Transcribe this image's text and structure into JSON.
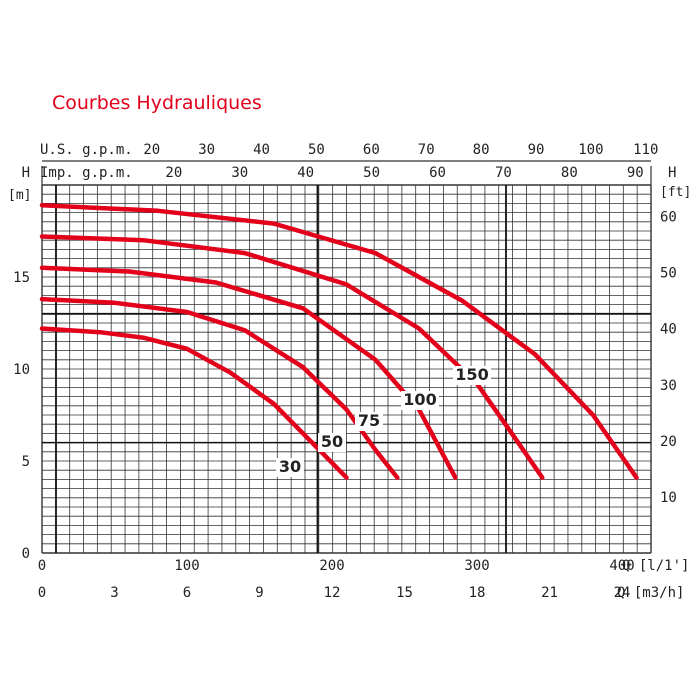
{
  "chart_data": {
    "type": "line",
    "title": "Courbes Hydrauliques",
    "grid": true,
    "legend": "none",
    "curve_color": "#e3001b",
    "axes": {
      "x_bottom_lpm": {
        "label": "Q [l/1']",
        "range": [
          0,
          420
        ],
        "ticks": [
          "0",
          "100",
          "200",
          "300",
          "400"
        ]
      },
      "x_bottom_m3h": {
        "label": "Q [m3/h]",
        "range": [
          0,
          25.2
        ],
        "ticks": [
          "0",
          "3",
          "6",
          "9",
          "12",
          "15",
          "18",
          "21",
          "24"
        ]
      },
      "x_top_usgpm": {
        "label": "U.S. g.p.m.",
        "ticks": [
          "20",
          "30",
          "40",
          "50",
          "60",
          "70",
          "80",
          "90",
          "100",
          "110"
        ]
      },
      "x_top_impgpm": {
        "label": "Imp. g.p.m.",
        "ticks": [
          "20",
          "30",
          "40",
          "50",
          "60",
          "70",
          "80",
          "90"
        ]
      },
      "y_left_m": {
        "axis_letter": "H",
        "label": "[m]",
        "range": [
          0,
          20
        ],
        "ticks": [
          "0",
          "5",
          "10",
          "15"
        ]
      },
      "y_right_ft": {
        "axis_letter": "H",
        "label": "[ft]",
        "ticks": [
          "10",
          "20",
          "30",
          "40",
          "50",
          "60"
        ]
      }
    },
    "series": [
      {
        "name": "30",
        "x_unit": "l/min",
        "points": [
          [
            0,
            12.2
          ],
          [
            40,
            12.0
          ],
          [
            70,
            11.7
          ],
          [
            100,
            11.1
          ],
          [
            130,
            9.8
          ],
          [
            160,
            8.1
          ],
          [
            180,
            6.5
          ],
          [
            200,
            4.9
          ],
          [
            210,
            4.1
          ]
        ]
      },
      {
        "name": "50",
        "x_unit": "l/min",
        "points": [
          [
            0,
            13.8
          ],
          [
            50,
            13.6
          ],
          [
            100,
            13.1
          ],
          [
            140,
            12.1
          ],
          [
            180,
            10.1
          ],
          [
            210,
            7.8
          ],
          [
            230,
            5.6
          ],
          [
            245,
            4.1
          ]
        ]
      },
      {
        "name": "75",
        "x_unit": "l/min",
        "points": [
          [
            0,
            15.5
          ],
          [
            60,
            15.3
          ],
          [
            120,
            14.7
          ],
          [
            180,
            13.3
          ],
          [
            230,
            10.5
          ],
          [
            260,
            7.8
          ],
          [
            285,
            4.1
          ]
        ]
      },
      {
        "name": "100",
        "x_unit": "l/min",
        "points": [
          [
            0,
            17.2
          ],
          [
            70,
            17.0
          ],
          [
            140,
            16.3
          ],
          [
            210,
            14.6
          ],
          [
            260,
            12.2
          ],
          [
            300,
            9.2
          ],
          [
            324,
            6.5
          ],
          [
            345,
            4.1
          ]
        ]
      },
      {
        "name": "150",
        "x_unit": "l/min",
        "points": [
          [
            0,
            18.9
          ],
          [
            80,
            18.6
          ],
          [
            160,
            17.9
          ],
          [
            230,
            16.3
          ],
          [
            290,
            13.7
          ],
          [
            340,
            10.8
          ],
          [
            380,
            7.5
          ],
          [
            410,
            4.1
          ]
        ]
      }
    ]
  }
}
